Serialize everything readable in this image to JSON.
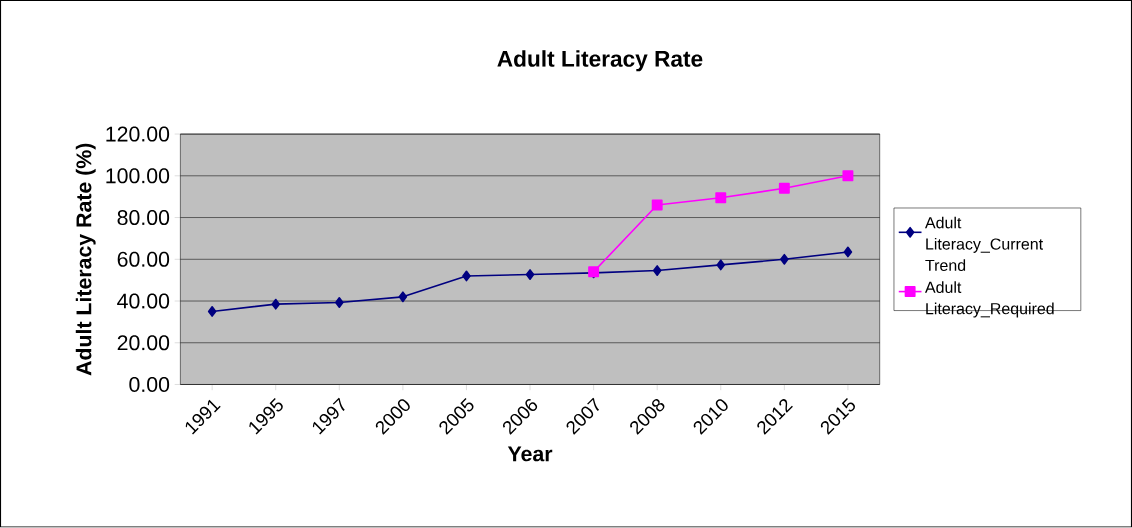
{
  "chart_data": {
    "type": "line",
    "title": "Adult Literacy Rate",
    "xlabel": "Year",
    "ylabel": "Adult Literacy Rate (%)",
    "categories": [
      "1991",
      "1995",
      "1997",
      "2000",
      "2005",
      "2006",
      "2007",
      "2008",
      "2010",
      "2012",
      "2015"
    ],
    "series": [
      {
        "name": "Adult Literacy_Current Trend",
        "color": "#000080",
        "marker": "diamond",
        "values": [
          35,
          38.5,
          39.3,
          42,
          52,
          52.7,
          53.5,
          54.6,
          57.3,
          60,
          63.5
        ]
      },
      {
        "name": "Adult Literacy_Required",
        "color": "#ff00ff",
        "marker": "square",
        "values": [
          null,
          null,
          null,
          null,
          null,
          null,
          54,
          86,
          89.5,
          94,
          100
        ]
      }
    ],
    "ylim": [
      0,
      120
    ],
    "yticks": [
      {
        "value": 0,
        "label": "0.00"
      },
      {
        "value": 20,
        "label": "20.00"
      },
      {
        "value": 40,
        "label": "40.00"
      },
      {
        "value": 60,
        "label": "60.00"
      },
      {
        "value": 80,
        "label": "80.00"
      },
      {
        "value": 100,
        "label": "100.00"
      },
      {
        "value": 120,
        "label": "120.00"
      }
    ],
    "grid": "y",
    "legend": "right"
  }
}
